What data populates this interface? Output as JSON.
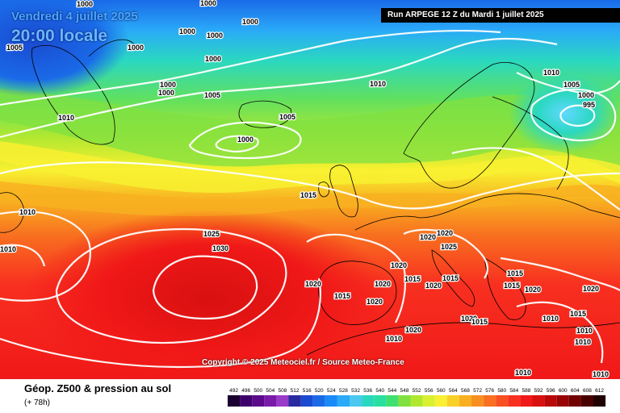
{
  "header": {
    "date": "Vendredi 4 juillet 2025",
    "time": "20:00 locale",
    "run": "Run ARPEGE 12 Z du Mardi 1 juillet 2025"
  },
  "copyright": "Copyright © 2025 Meteociel.fr / Source Meteo-France",
  "footer": {
    "title": "Géop. Z500 & pression au sol",
    "subtitle": "(+ 78h)"
  },
  "legend": {
    "values": [
      "492",
      "496",
      "500",
      "504",
      "508",
      "512",
      "516",
      "520",
      "524",
      "528",
      "532",
      "536",
      "540",
      "544",
      "548",
      "552",
      "556",
      "560",
      "564",
      "568",
      "572",
      "576",
      "580",
      "584",
      "588",
      "592",
      "596",
      "600",
      "604",
      "608",
      "612"
    ],
    "colors": [
      "#1a0030",
      "#3d006b",
      "#5a0a8a",
      "#7a1aa8",
      "#9a3ac8",
      "#2a2aa0",
      "#1a4ad0",
      "#1a6ae8",
      "#1a8af8",
      "#2aaaf8",
      "#4ac8f0",
      "#2ad8c0",
      "#2ae0a0",
      "#40e070",
      "#80e040",
      "#b0e830",
      "#d8f030",
      "#f8f030",
      "#f8d028",
      "#f8b020",
      "#f89020",
      "#f87020",
      "#f85020",
      "#f83020",
      "#f01818",
      "#d81010",
      "#b80808",
      "#980404",
      "#700202",
      "#480000",
      "#200000"
    ]
  },
  "isobars": [
    {
      "text": "1000"
    },
    {
      "text": "1005"
    },
    {
      "text": "1000"
    },
    {
      "text": "1000"
    },
    {
      "text": "1000"
    },
    {
      "text": "1000"
    },
    {
      "text": "1000"
    },
    {
      "text": "1000"
    },
    {
      "text": "1000"
    },
    {
      "text": "1000"
    },
    {
      "text": "1005"
    },
    {
      "text": "1010"
    },
    {
      "text": "1005"
    },
    {
      "text": "1000"
    },
    {
      "text": "1010"
    },
    {
      "text": "1010"
    },
    {
      "text": "1005"
    },
    {
      "text": "1000"
    },
    {
      "text": "995"
    },
    {
      "text": "1015"
    },
    {
      "text": "1010"
    },
    {
      "text": "1010"
    },
    {
      "text": "1025"
    },
    {
      "text": "1030"
    },
    {
      "text": "1020"
    },
    {
      "text": "1020"
    },
    {
      "text": "1025"
    },
    {
      "text": "1020"
    },
    {
      "text": "1015"
    },
    {
      "text": "1020"
    },
    {
      "text": "1015"
    },
    {
      "text": "1020"
    },
    {
      "text": "1015"
    },
    {
      "text": "1020"
    },
    {
      "text": "1015"
    },
    {
      "text": "1020"
    },
    {
      "text": "1015"
    },
    {
      "text": "1020"
    },
    {
      "text": "1020"
    },
    {
      "text": "1015"
    },
    {
      "text": "1010"
    },
    {
      "text": "1010"
    },
    {
      "text": "1010"
    },
    {
      "text": "1020"
    },
    {
      "text": "1010"
    },
    {
      "text": "1010"
    },
    {
      "text": "1020"
    },
    {
      "text": "1010"
    },
    {
      "text": "1015"
    }
  ]
}
